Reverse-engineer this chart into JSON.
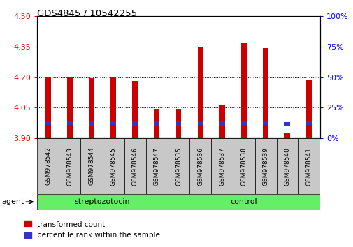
{
  "title": "GDS4845 / 10542255",
  "samples": [
    "GSM978542",
    "GSM978543",
    "GSM978544",
    "GSM978545",
    "GSM978546",
    "GSM978547",
    "GSM978535",
    "GSM978536",
    "GSM978537",
    "GSM978538",
    "GSM978539",
    "GSM978540",
    "GSM978541"
  ],
  "transformed_count": [
    4.2,
    4.2,
    4.195,
    4.2,
    4.18,
    4.045,
    4.043,
    4.35,
    4.065,
    4.365,
    4.343,
    3.925,
    4.19
  ],
  "blue_bottom": [
    3.966,
    3.966,
    3.963,
    3.965,
    3.963,
    3.963,
    3.963,
    3.966,
    3.963,
    3.965,
    3.965,
    3.962,
    3.966
  ],
  "blue_height": [
    0.022,
    0.022,
    0.02,
    0.022,
    0.02,
    0.02,
    0.02,
    0.022,
    0.02,
    0.022,
    0.022,
    0.018,
    0.022
  ],
  "groups": [
    "streptozotocin",
    "streptozotocin",
    "streptozotocin",
    "streptozotocin",
    "streptozotocin",
    "streptozotocin",
    "control",
    "control",
    "control",
    "control",
    "control",
    "control",
    "control"
  ],
  "strep_count": 6,
  "ctrl_count": 7,
  "bar_color_red": "#CC0000",
  "bar_color_blue": "#3333CC",
  "tick_bg_color": "#C8C8C8",
  "group_color": "#66EE66",
  "ylim": [
    3.9,
    4.5
  ],
  "yticks": [
    3.9,
    4.05,
    4.2,
    4.35,
    4.5
  ],
  "background_color": "#ffffff",
  "bar_width": 0.25,
  "base_value": 3.9,
  "legend_items": [
    "transformed count",
    "percentile rank within the sample"
  ]
}
